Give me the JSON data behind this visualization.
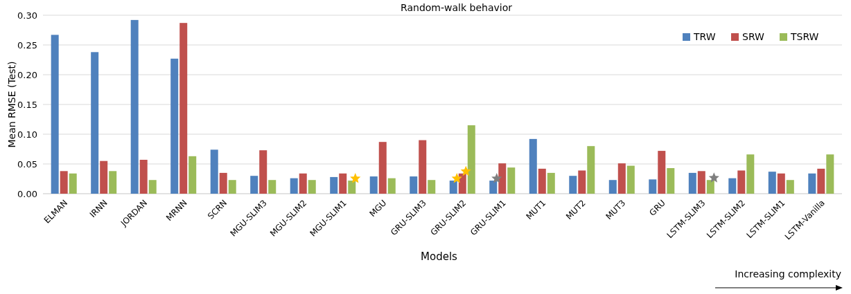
{
  "chart_data": {
    "type": "bar",
    "title": "Random-walk behavior",
    "xlabel": "Models",
    "ylabel": "Mean RMSE (Test)",
    "categories": [
      "ELMAN",
      "IRNN",
      "JORDAN",
      "MRNN",
      "SCRN",
      "MGU-SLIM3",
      "MGU-SLIM2",
      "MGU-SLIM1",
      "MGU",
      "GRU-SLIM3",
      "GRU-SLIM2",
      "GRU-SLIM1",
      "MUT1",
      "MUT2",
      "MUT3",
      "GRU",
      "LSTM-SLIM3",
      "LSTM-SLIM2",
      "LSTM-SLIM1",
      "LSTM-Vanilla"
    ],
    "series": [
      {
        "name": "TRW",
        "color": "#4f81bd",
        "values": [
          0.267,
          0.238,
          0.292,
          0.227,
          0.074,
          0.03,
          0.026,
          0.028,
          0.029,
          0.029,
          0.022,
          0.022,
          0.092,
          0.03,
          0.023,
          0.024,
          0.035,
          0.026,
          0.037,
          0.034
        ]
      },
      {
        "name": "SRW",
        "color": "#c0504d",
        "values": [
          0.038,
          0.055,
          0.057,
          0.287,
          0.035,
          0.073,
          0.034,
          0.034,
          0.087,
          0.09,
          0.034,
          0.051,
          0.042,
          0.039,
          0.051,
          0.072,
          0.038,
          0.039,
          0.034,
          0.042
        ]
      },
      {
        "name": "TSRW",
        "color": "#9bbb59",
        "values": [
          0.034,
          0.038,
          0.023,
          0.063,
          0.023,
          0.023,
          0.023,
          0.022,
          0.026,
          0.023,
          0.115,
          0.044,
          0.035,
          0.08,
          0.047,
          0.043,
          0.023,
          0.066,
          0.023,
          0.066
        ]
      }
    ],
    "ylim": [
      0,
      0.3
    ],
    "yticks": [
      {
        "value": 0,
        "label": "0.00"
      },
      {
        "value": 0.05,
        "label": "0.05"
      },
      {
        "value": 0.1,
        "label": "0.10"
      },
      {
        "value": 0.15,
        "label": "0.15"
      },
      {
        "value": 0.2,
        "label": "0.20"
      },
      {
        "value": 0.25,
        "label": "0.25"
      },
      {
        "value": 0.3,
        "label": "0.30"
      }
    ],
    "grid": "y",
    "legend": "top right",
    "annotations": [
      "Increasing complexity"
    ]
  }
}
